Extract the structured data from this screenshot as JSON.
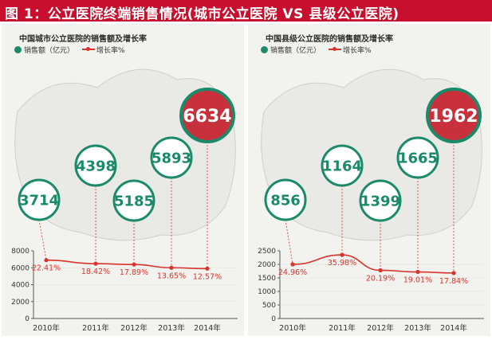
{
  "banner": {
    "title": "图 1：公立医院终端销售情况(城市公立医院 VS 县级公立医院)"
  },
  "colors": {
    "banner": "#c8102e",
    "sales_ring": "#1a8a6a",
    "highlight_fill": "#c8313c",
    "growth_line": "#d9342b"
  },
  "legend": {
    "sales": "销售额（亿元）",
    "growth": "增长率%"
  },
  "chart_data": [
    {
      "type": "line",
      "title": "中国城市公立医院的销售额及增长率",
      "x": [
        "2010年",
        "2011年",
        "2012年",
        "2013年",
        "2014年"
      ],
      "sales": [
        3714,
        4398,
        5185,
        5893,
        6634
      ],
      "sales_labels": [
        "3714",
        "4398",
        "5185",
        "5893",
        "6634"
      ],
      "series": [
        {
          "name": "增长率%",
          "values": [
            6900,
            6480,
            6380,
            6000,
            5900
          ]
        }
      ],
      "growth_labels": [
        "22.41%",
        "18.42%",
        "17.89%",
        "13.65%",
        "12.57%"
      ],
      "y_ticks": [
        "8000",
        "6000",
        "4000",
        "2000",
        "0"
      ],
      "ylim": [
        0,
        8000
      ],
      "highlight_index": 4
    },
    {
      "type": "line",
      "title": "中国县级公立医院的销售额及增长率",
      "x": [
        "2010年",
        "2011年",
        "2012年",
        "2013年",
        "2014年"
      ],
      "sales": [
        856,
        1164,
        1399,
        1665,
        1962
      ],
      "sales_labels": [
        "856",
        "1164",
        "1399",
        "1665",
        "1962"
      ],
      "series": [
        {
          "name": "增长率%",
          "values": [
            2000,
            2350,
            1780,
            1720,
            1680
          ]
        }
      ],
      "growth_labels": [
        "24.96%",
        "35.98%",
        "20.19%",
        "19.01%",
        "17.84%"
      ],
      "y_ticks": [
        "2500",
        "2000",
        "1500",
        "1000",
        "500",
        "0"
      ],
      "ylim": [
        0,
        2500
      ],
      "highlight_index": 4
    }
  ]
}
